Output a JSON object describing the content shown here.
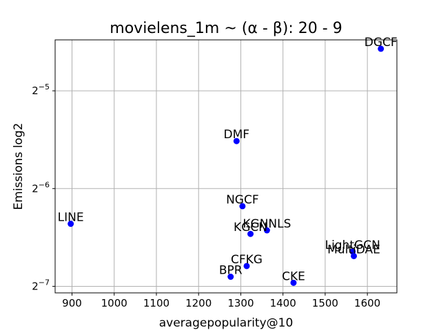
{
  "chart_data": {
    "type": "scatter",
    "title": "movielens_1m ~ (α - β): 20 - 9",
    "xlabel": "averagepopularity@10",
    "ylabel": "Emissions log2",
    "y_scale": "log2",
    "xlim": [
      860,
      1670
    ],
    "ylim": [
      0.007457,
      0.04485
    ],
    "x_ticks": [
      900,
      1000,
      1100,
      1200,
      1300,
      1400,
      1500,
      1600
    ],
    "y_ticks": [
      {
        "value": 0.03125,
        "base": "2",
        "exp": "−5"
      },
      {
        "value": 0.015625,
        "base": "2",
        "exp": "−6"
      },
      {
        "value": 0.0078125,
        "base": "2",
        "exp": "−7"
      }
    ],
    "grid": true,
    "marker_color": "#0000ff",
    "points": [
      {
        "label": "DGCF",
        "x": 1632,
        "y": 0.04212
      },
      {
        "label": "DMF",
        "x": 1290,
        "y": 0.02188
      },
      {
        "label": "NGCF",
        "x": 1304,
        "y": 0.01379
      },
      {
        "label": "LINE",
        "x": 897,
        "y": 0.01217
      },
      {
        "label": "KGNNLS",
        "x": 1362,
        "y": 0.01162
      },
      {
        "label": "KGCN",
        "x": 1323,
        "y": 0.01133
      },
      {
        "label": "LightGCN",
        "x": 1565,
        "y": 0.01
      },
      {
        "label": "MultiDAE",
        "x": 1568,
        "y": 0.00968
      },
      {
        "label": "CFKG",
        "x": 1314,
        "y": 0.00902
      },
      {
        "label": "BPR",
        "x": 1276,
        "y": 0.00836
      },
      {
        "label": "CKE",
        "x": 1425,
        "y": 0.00801
      }
    ]
  }
}
